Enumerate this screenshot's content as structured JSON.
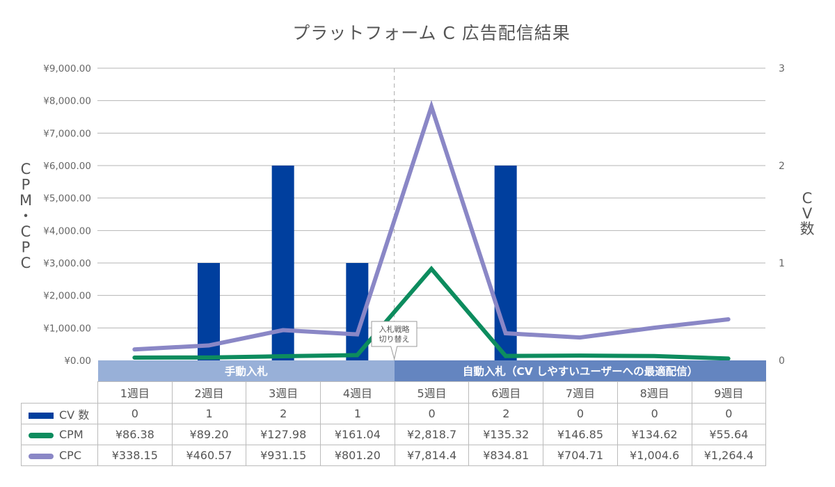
{
  "chart_data": {
    "type": "bar+line",
    "title": "プラットフォーム C 広告配信結果",
    "y_left_label": "CPM・CPC",
    "y_right_label": "CV数",
    "y_left_ticks": [
      "¥0.00",
      "¥1,000.00",
      "¥2,000.00",
      "¥3,000.00",
      "¥4,000.00",
      "¥5,000.00",
      "¥6,000.00",
      "¥7,000.00",
      "¥8,000.00",
      "¥9,000.00"
    ],
    "y_left_range": [
      0,
      9000
    ],
    "y_right_ticks": [
      "0",
      "1",
      "2",
      "3"
    ],
    "y_right_range": [
      0,
      3
    ],
    "grid": true,
    "categories": [
      "1週目",
      "2週目",
      "3週目",
      "4週目",
      "5週目",
      "6週目",
      "7週目",
      "8週目",
      "9週目"
    ],
    "phases": [
      {
        "label": "手動入札",
        "start": 0,
        "end": 3
      },
      {
        "label": "自動入札（CV しやすいユーザーへの最適配信）",
        "start": 4,
        "end": 8
      }
    ],
    "annotation": {
      "text_lines": [
        "入札戦略",
        "切り替え"
      ],
      "between_categories": [
        3,
        4
      ]
    },
    "series": [
      {
        "name": "CV 数",
        "kind": "bar",
        "axis": "right",
        "color": "#003f9e",
        "values": [
          0,
          1,
          2,
          1,
          0,
          2,
          0,
          0,
          0
        ],
        "labels": [
          "0",
          "1",
          "2",
          "1",
          "0",
          "2",
          "0",
          "0",
          "0"
        ]
      },
      {
        "name": "CPM",
        "kind": "line",
        "axis": "left",
        "color": "#0d8c5e",
        "values": [
          86.38,
          89.2,
          127.98,
          161.04,
          2818.7,
          135.32,
          146.85,
          134.62,
          55.64
        ],
        "labels": [
          "¥86.38",
          "¥89.20",
          "¥127.98",
          "¥161.04",
          "¥2,818.7",
          "¥135.32",
          "¥146.85",
          "¥134.62",
          "¥55.64"
        ]
      },
      {
        "name": "CPC",
        "kind": "line",
        "axis": "left",
        "color": "#8a87c6",
        "values": [
          338.15,
          460.57,
          931.15,
          801.2,
          7814.4,
          834.81,
          704.71,
          1004.6,
          1264.4
        ],
        "labels": [
          "¥338.15",
          "¥460.57",
          "¥931.15",
          "¥801.20",
          "¥7,814.4",
          "¥834.81",
          "¥704.71",
          "¥1,004.6",
          "¥1,264.4"
        ]
      }
    ],
    "colors": {
      "gridline": "#b5b5b5",
      "phase_manual": "#98b0d8",
      "phase_auto": "#6485c0"
    }
  }
}
